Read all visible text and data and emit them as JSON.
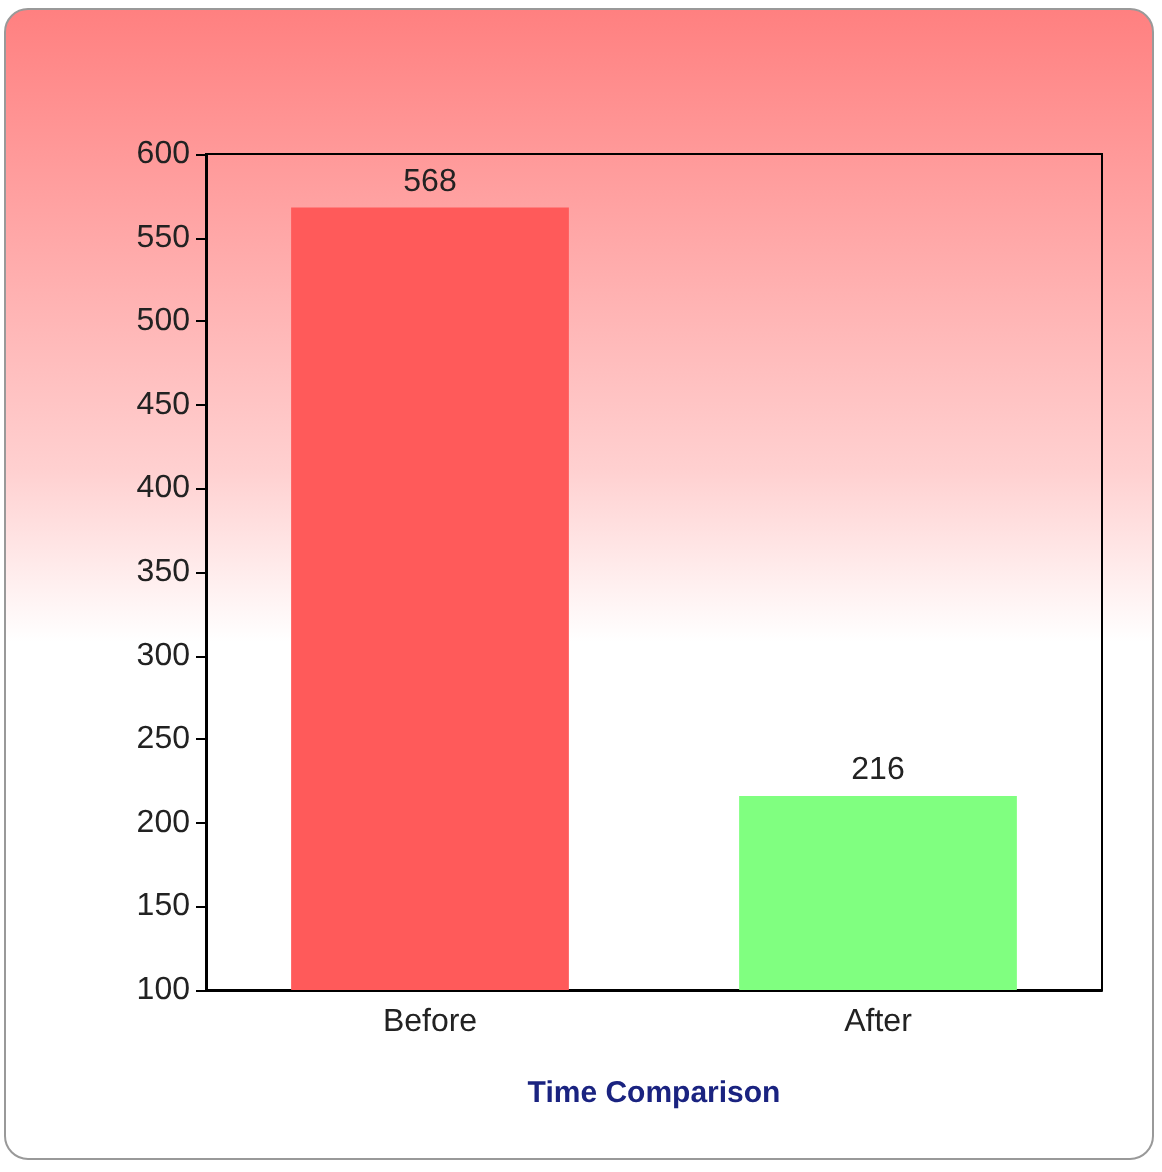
{
  "chart_data": {
    "type": "bar",
    "xlabel": "Time Comparison",
    "categories": [
      "Before",
      "After"
    ],
    "values": [
      568,
      216
    ],
    "colors": [
      "#ff5a5a",
      "#80ff80"
    ],
    "ylim": [
      100,
      600
    ],
    "yticks": [
      100,
      150,
      200,
      250,
      300,
      350,
      400,
      450,
      500,
      550,
      600
    ],
    "data_labels": true,
    "grid": false
  }
}
